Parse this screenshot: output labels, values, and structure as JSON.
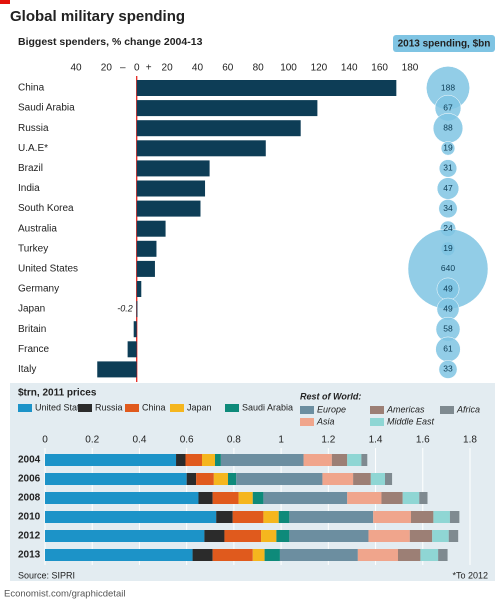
{
  "title": "Global military spending",
  "footnote": "*To 2012",
  "source": "Source: SIPRI",
  "credit": "Economist.com/graphicdetail",
  "chart_data": [
    {
      "type": "hbar",
      "subtitle": "Biggest spenders, % change 2004-13",
      "color": "#0d3d56",
      "zero_color": "#e3120b",
      "categories": [
        "China",
        "Saudi Arabia",
        "Russia",
        "U.A.E*",
        "Brazil",
        "India",
        "South Korea",
        "Australia",
        "Turkey",
        "United States",
        "Germany",
        "Japan",
        "Britain",
        "France",
        "Italy"
      ],
      "values": [
        171,
        119,
        108,
        85,
        48,
        45,
        42,
        19,
        13,
        12,
        3,
        -0.2,
        -2,
        -6,
        -26
      ],
      "value_labels": [
        null,
        null,
        null,
        null,
        null,
        null,
        null,
        null,
        null,
        null,
        null,
        "-0.2",
        null,
        null,
        null
      ],
      "xlim": [
        -40,
        180
      ],
      "xticks": [
        {
          "value": -40,
          "label": "40"
        },
        {
          "value": -20,
          "label": "20"
        },
        0,
        20,
        40,
        60,
        80,
        100,
        120,
        140,
        160,
        180
      ],
      "zero_signs": [
        "–",
        "+"
      ],
      "bubble_header": "2013 spending, $bn",
      "bubble_color": "#7fc4e3",
      "bubble_values": [
        188,
        67,
        88,
        19,
        31,
        47,
        34,
        24,
        19,
        640,
        49,
        49,
        58,
        61,
        33
      ]
    },
    {
      "type": "stacked_hbar",
      "subtitle": "$trn, 2011 prices",
      "legend_group_label": "Rest of World:",
      "categories": [
        "2004",
        "2006",
        "2008",
        "2010",
        "2012",
        "2013"
      ],
      "xlim": [
        0,
        1.8
      ],
      "xticks": [
        0,
        0.2,
        0.4,
        0.6,
        0.8,
        1,
        1.2,
        1.4,
        1.6,
        1.8
      ],
      "grid": true,
      "series": [
        {
          "name": "United States",
          "color": "#1c93c8",
          "values": [
            0.555,
            0.6,
            0.65,
            0.725,
            0.675,
            0.625
          ]
        },
        {
          "name": "Russia",
          "color": "#2b2b2b",
          "values": [
            0.04,
            0.04,
            0.06,
            0.07,
            0.085,
            0.085
          ]
        },
        {
          "name": "China",
          "color": "#e05a1d",
          "values": [
            0.07,
            0.075,
            0.11,
            0.13,
            0.155,
            0.17
          ]
        },
        {
          "name": "Japan",
          "color": "#f5b61e",
          "values": [
            0.055,
            0.06,
            0.06,
            0.065,
            0.065,
            0.05
          ]
        },
        {
          "name": "Saudi Arabia",
          "color": "#0e8a7a",
          "values": [
            0.025,
            0.035,
            0.045,
            0.045,
            0.055,
            0.065
          ]
        },
        {
          "name": "Europe",
          "color": "#6c8ea0",
          "values": [
            0.35,
            0.365,
            0.355,
            0.355,
            0.335,
            0.33
          ]
        },
        {
          "name": "Asia",
          "color": "#f0a58c",
          "values": [
            0.12,
            0.13,
            0.145,
            0.16,
            0.175,
            0.17
          ]
        },
        {
          "name": "Americas",
          "color": "#9c7f75",
          "values": [
            0.065,
            0.075,
            0.09,
            0.095,
            0.095,
            0.095
          ]
        },
        {
          "name": "Middle East",
          "color": "#8fd6d4",
          "values": [
            0.06,
            0.06,
            0.07,
            0.07,
            0.07,
            0.075
          ]
        },
        {
          "name": "Africa",
          "color": "#7f8a90",
          "values": [
            0.025,
            0.03,
            0.035,
            0.04,
            0.04,
            0.04
          ]
        }
      ]
    }
  ]
}
